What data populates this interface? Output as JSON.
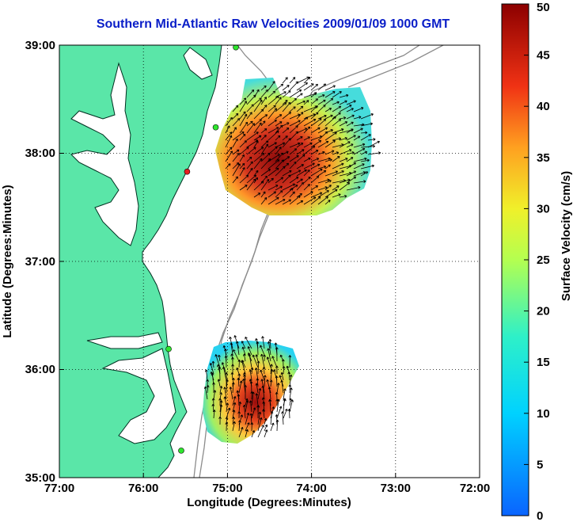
{
  "title": "Southern Mid-Atlantic Raw Velocities 2009/01/09 1000 GMT",
  "xlabel": "Longitude (Degrees:Minutes)",
  "ylabel": "Latitude (Degrees:Minutes)",
  "x_ticks": [
    "77:00",
    "76:00",
    "75:00",
    "74:00",
    "73:00",
    "72:00"
  ],
  "y_ticks": [
    "39:00",
    "38:00",
    "37:00",
    "36:00",
    "35:00"
  ],
  "colorbar": {
    "label": "Surface Velocity (cm/s)",
    "ticks": [
      "0",
      "5",
      "10",
      "15",
      "20",
      "25",
      "30",
      "35",
      "40",
      "45",
      "50"
    ],
    "range": [
      0,
      50
    ],
    "colormap": "jet"
  },
  "colors": {
    "land": "#5ae6a8",
    "title": "#0a1ec8",
    "bathymetry": "#8c8c8c"
  },
  "chart_data": {
    "type": "map",
    "xlim": [
      -77,
      -72
    ],
    "ylim": [
      35,
      39
    ],
    "grid": true,
    "stations": [
      {
        "lon": -74.9,
        "lat": 38.98,
        "color": "#2ee62e"
      },
      {
        "lon": -75.14,
        "lat": 38.24,
        "color": "#2ee62e"
      },
      {
        "lon": -75.48,
        "lat": 37.83,
        "color": "#e62020"
      },
      {
        "lon": -75.7,
        "lat": 36.19,
        "color": "#2ee62e"
      },
      {
        "lon": -75.55,
        "lat": 35.25,
        "color": "#2ee62e"
      }
    ]
  }
}
